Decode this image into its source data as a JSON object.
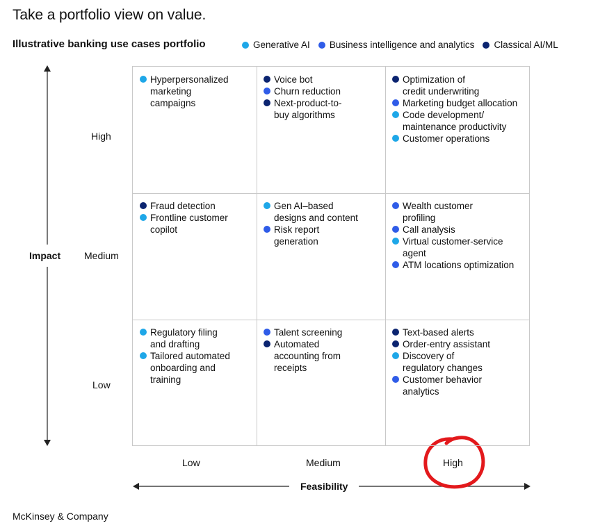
{
  "title": "Take a portfolio view on value.",
  "subtitle": "Illustrative banking use cases portfolio",
  "legend": [
    {
      "label": "Generative AI",
      "color": "#1ea7e8"
    },
    {
      "label": "Business intelligence and analytics",
      "color": "#2f5ce8"
    },
    {
      "label": "Classical AI/ML",
      "color": "#0b2470"
    }
  ],
  "y_axis": {
    "title": "Impact",
    "ticks": [
      "High",
      "Medium",
      "Low"
    ]
  },
  "x_axis": {
    "title": "Feasibility",
    "ticks": [
      "Low",
      "Medium",
      "High"
    ]
  },
  "cells": {
    "high_low": [
      {
        "text": "Hyperpersonalized\nmarketing\ncampaigns",
        "color": "#1ea7e8"
      }
    ],
    "high_medium": [
      {
        "text": "Voice bot",
        "color": "#0b2470"
      },
      {
        "text": "Churn reduction",
        "color": "#2f5ce8"
      },
      {
        "text": "Next-product-to-\nbuy algorithms",
        "color": "#0b2470"
      }
    ],
    "high_high": [
      {
        "text": "Optimization of\ncredit underwriting",
        "color": "#0b2470"
      },
      {
        "text": "Marketing budget allocation",
        "color": "#2f5ce8"
      },
      {
        "text": "Code development/\nmaintenance productivity",
        "color": "#1ea7e8"
      },
      {
        "text": "Customer operations",
        "color": "#1ea7e8"
      }
    ],
    "medium_low": [
      {
        "text": "Fraud detection",
        "color": "#0b2470"
      },
      {
        "text": "Frontline customer\ncopilot",
        "color": "#1ea7e8"
      }
    ],
    "medium_medium": [
      {
        "text": "Gen AI–based\ndesigns and content",
        "color": "#1ea7e8"
      },
      {
        "text": "Risk report\ngeneration",
        "color": "#2f5ce8"
      }
    ],
    "medium_high": [
      {
        "text": "Wealth customer\nprofiling",
        "color": "#2f5ce8"
      },
      {
        "text": "Call analysis",
        "color": "#2f5ce8"
      },
      {
        "text": "Virtual customer-service\nagent",
        "color": "#1ea7e8"
      },
      {
        "text": "ATM locations optimization",
        "color": "#2f5ce8"
      }
    ],
    "low_low": [
      {
        "text": "Regulatory filing\nand drafting",
        "color": "#1ea7e8"
      },
      {
        "text": "Tailored automated\nonboarding and\ntraining",
        "color": "#1ea7e8"
      }
    ],
    "low_medium": [
      {
        "text": "Talent screening",
        "color": "#2f5ce8"
      },
      {
        "text": "Automated\naccounting from\nreceipts",
        "color": "#0b2470"
      }
    ],
    "low_high": [
      {
        "text": "Text-based alerts",
        "color": "#0b2470"
      },
      {
        "text": "Order-entry assistant",
        "color": "#0b2470"
      },
      {
        "text": "Discovery of\nregulatory changes",
        "color": "#1ea7e8"
      },
      {
        "text": "Customer behavior\nanalytics",
        "color": "#2f5ce8"
      }
    ]
  },
  "annotation": {
    "color": "#e3191c"
  },
  "footer": "McKinsey & Company"
}
